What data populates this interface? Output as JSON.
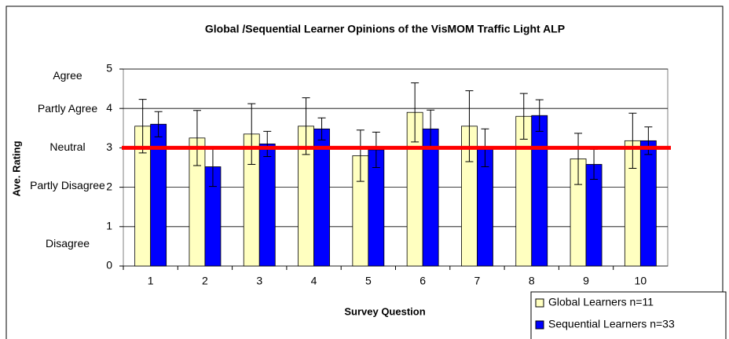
{
  "chart_data": {
    "type": "bar",
    "title": "Global /Sequential Learner Opinions of the VisMOM Traffic Light ALP",
    "x_label": "Survey Question",
    "y_label": "Ave. Rating",
    "categories": [
      "1",
      "2",
      "3",
      "4",
      "5",
      "6",
      "7",
      "8",
      "9",
      "10"
    ],
    "series": [
      {
        "name": "Global Learners n=11",
        "color": "#ffffc0",
        "values": [
          3.55,
          3.25,
          3.35,
          3.55,
          2.8,
          3.9,
          3.55,
          3.8,
          2.72,
          3.18
        ],
        "errors": [
          0.68,
          0.7,
          0.77,
          0.72,
          0.65,
          0.75,
          0.9,
          0.58,
          0.65,
          0.7
        ]
      },
      {
        "name": "Sequential Learners n=33",
        "color": "#0000ff",
        "values": [
          3.6,
          2.52,
          3.1,
          3.48,
          2.95,
          3.48,
          3.0,
          3.82,
          2.58,
          3.18
        ],
        "errors": [
          0.32,
          0.5,
          0.32,
          0.28,
          0.45,
          0.48,
          0.48,
          0.4,
          0.38,
          0.35
        ]
      }
    ],
    "ylim": [
      0,
      5
    ],
    "yticks": [
      0,
      1,
      2,
      3,
      4,
      5
    ],
    "grid": true,
    "rating_labels": [
      "Agree",
      "Partly Agree",
      "Neutral",
      "Partly Disagree",
      "Disagree"
    ],
    "reference_line": {
      "value": 3,
      "color": "#ff0000"
    },
    "legend": "bottom-right"
  }
}
